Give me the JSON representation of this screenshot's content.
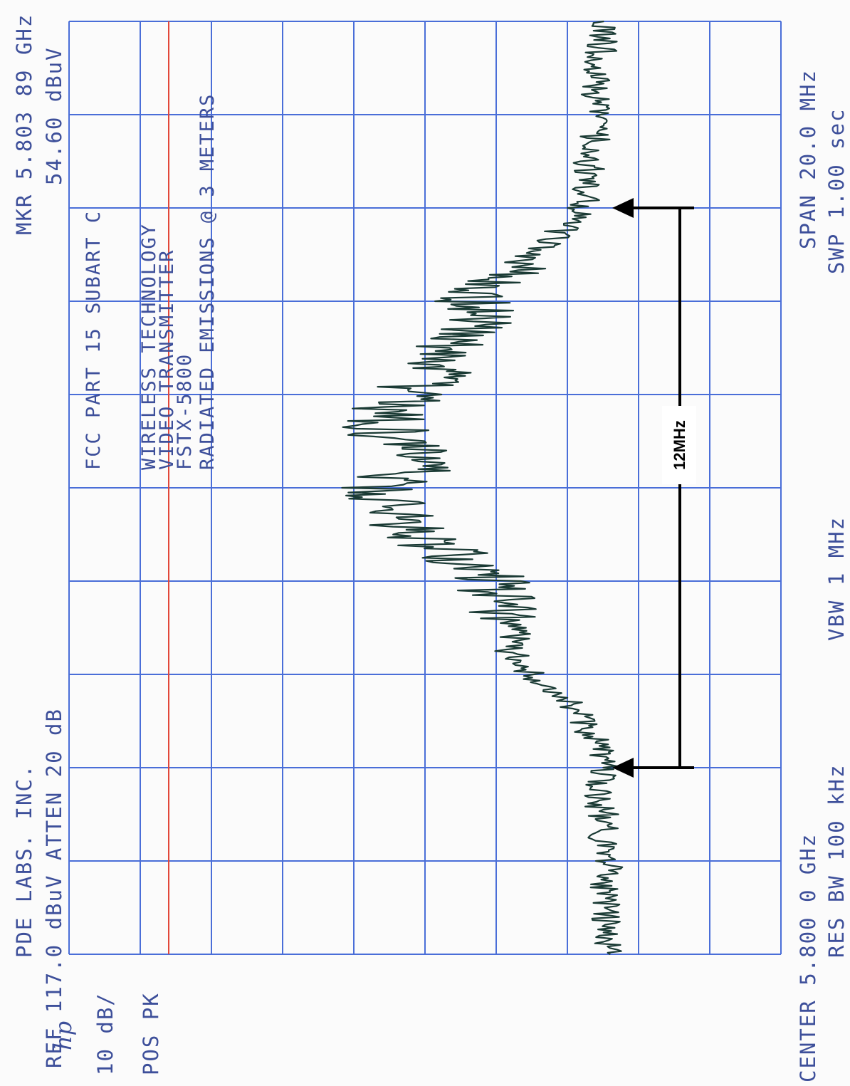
{
  "instrument": {
    "logo": "hp",
    "header_line1": "PDE LABS. INC.",
    "header_line2": "REF  117.0 dBuV ATTEN 20 dB",
    "marker_line1": "MKR 5.803 89 GHz",
    "marker_line2": "54.60 dBuV",
    "scale": "10 dB/",
    "detector": "POS PK",
    "footer_center": "CENTER 5.800 0 GHz",
    "footer_rbw": "RES BW 100 kHz",
    "footer_vbw": "VBW 1 MHz",
    "footer_span": "SPAN 20.0 MHz",
    "footer_sweep": "SWP 1.00  sec"
  },
  "notes": {
    "line1": "FCC PART 15 SUBART C",
    "line2": "WIRELESS TECHNOLOGY",
    "line3": "VIDEO TRANSMITTER",
    "line4": "FSTX-5800",
    "line5": "RADIATED EMISSIONS @ 3  METERS"
  },
  "annotation": {
    "bandwidth_label": "12MHz",
    "start_mhz": 5794.0,
    "end_mhz": 5806.0
  },
  "chart_data": {
    "type": "line",
    "xlabel": "",
    "ylabel": "",
    "x_unit": "MHz",
    "y_unit": "dBuV",
    "xlim": [
      5790.0,
      5810.0
    ],
    "ylim": [
      17.0,
      117.0
    ],
    "grid": true,
    "limit_line_dbuv": 103.0,
    "series": [
      {
        "x": [
          5790.0,
          5790.5,
          5791.0,
          5791.5,
          5792.0,
          5792.5,
          5793.0,
          5793.5,
          5794.0,
          5794.5,
          5795.0,
          5795.5,
          5796.0,
          5796.5,
          5797.0,
          5797.5,
          5798.0,
          5798.5,
          5799.0,
          5799.5,
          5800.0,
          5800.5,
          5801.0,
          5801.5,
          5802.0,
          5802.5,
          5803.0,
          5803.5,
          5804.0,
          5804.5,
          5805.0,
          5805.5,
          5806.0,
          5806.5,
          5807.0,
          5807.5,
          5808.0,
          5808.5,
          5809.0,
          5809.5,
          5810.0
        ],
        "values": [
          41,
          42,
          41,
          42,
          41,
          42,
          42,
          43,
          42,
          43,
          45,
          47,
          52,
          55,
          54,
          57,
          58,
          62,
          68,
          71,
          74,
          67,
          72,
          73,
          70,
          65,
          64,
          61,
          60,
          57,
          52,
          48,
          45,
          44,
          44,
          43,
          43,
          43,
          43,
          42,
          42
        ]
      }
    ]
  }
}
